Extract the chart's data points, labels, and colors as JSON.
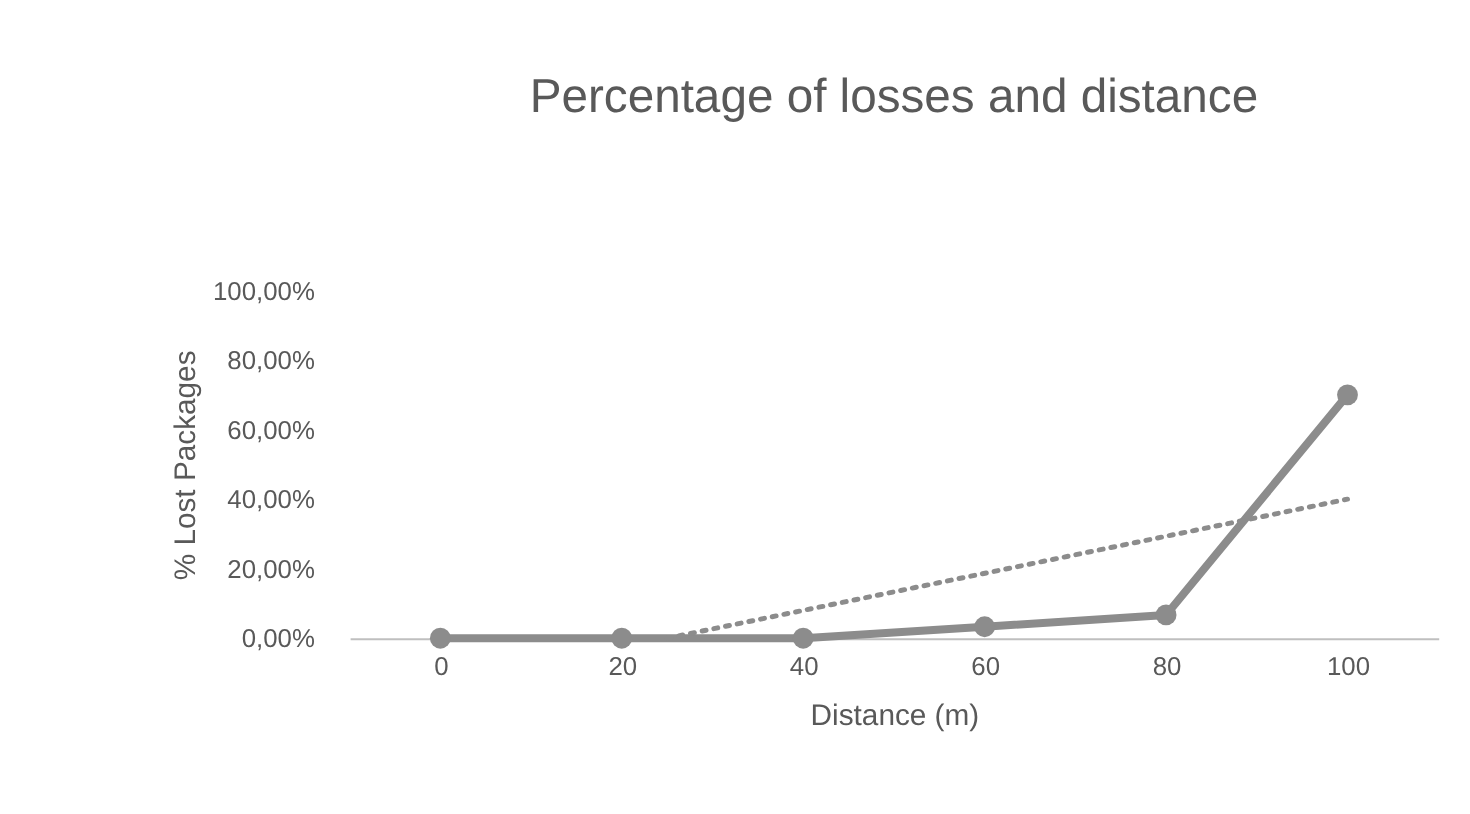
{
  "chart_data": {
    "type": "line",
    "title": "Percentage of losses and distance",
    "xlabel": "Distance (m)",
    "ylabel": "% Lost Packages",
    "x": [
      0,
      20,
      40,
      60,
      80,
      100
    ],
    "series": [
      {
        "color": "#8c8c8c",
        "values": [
          0,
          0,
          0,
          3.3,
          6.7,
          70
        ],
        "marker": "circle",
        "line_style": "solid"
      },
      {
        "type": "line",
        "color": "#8c8c8c",
        "x": [
          25,
          100
        ],
        "values": [
          0,
          40
        ],
        "marker": "none",
        "line_style": "dotted"
      }
    ],
    "xlim": [
      -10,
      110
    ],
    "xticks": [
      0,
      20,
      40,
      60,
      80,
      100
    ],
    "ylim": [
      0,
      100
    ],
    "yticks": [
      {
        "value": 0,
        "label": "0,00%"
      },
      {
        "value": 20,
        "label": "20,00%"
      },
      {
        "value": 40,
        "label": "40,00%"
      },
      {
        "value": 60,
        "label": "60,00%"
      },
      {
        "value": 80,
        "label": "80,00%"
      },
      {
        "value": 100,
        "label": "100,00%"
      }
    ],
    "grid": false
  }
}
